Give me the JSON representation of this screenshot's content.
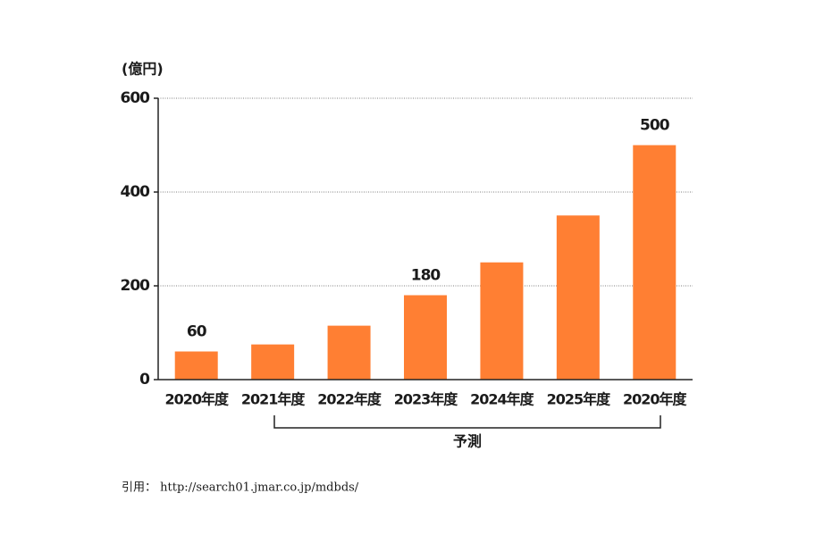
{
  "chart_data": {
    "type": "bar",
    "y_axis_label": "(億円)",
    "categories": [
      "2020年度",
      "2021年度",
      "2022年度",
      "2023年度",
      "2024年度",
      "2025年度",
      "2020年度"
    ],
    "values": [
      60,
      75,
      115,
      180,
      250,
      350,
      500
    ],
    "value_labels": [
      "60",
      null,
      null,
      "180",
      null,
      null,
      "500"
    ],
    "color": "#ff7f33",
    "ylim": [
      0,
      600
    ],
    "yticks": [
      0,
      200,
      400,
      600
    ],
    "grid": true,
    "annotation": "予測",
    "source": "引用： http://search01.jmar.co.jp/mdbds/"
  }
}
